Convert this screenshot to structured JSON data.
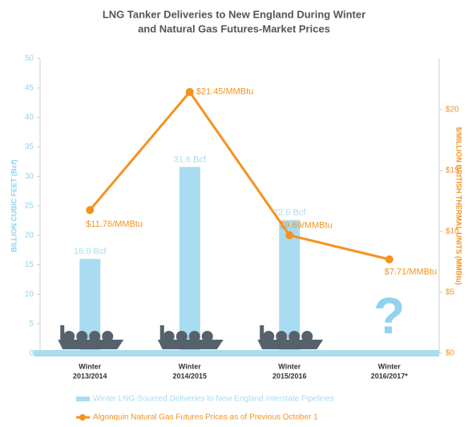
{
  "chart_data": {
    "type": "bar-line",
    "title": [
      "LNG Tanker Deliveries to New England During Winter",
      "and Natural Gas Futures-Market Prices"
    ],
    "categories": [
      [
        "Winter",
        "2013/2014"
      ],
      [
        "Winter",
        "2014/2015"
      ],
      [
        "Winter",
        "2015/2016"
      ],
      [
        "Winter",
        "2016/2017*"
      ]
    ],
    "series": [
      {
        "name": "Winter LNG-Sourced Deliveries to New England Interstate Pipelines",
        "type": "bar",
        "color": "#a9dcf0",
        "values": [
          16.0,
          31.6,
          22.6,
          null
        ],
        "value_labels": [
          "16.0 Bcf",
          "31.6 Bcf",
          "22.6 Bcf",
          null
        ]
      },
      {
        "name": "Algonquin Natural Gas Futures Prices as of Previous October 1",
        "type": "line",
        "axis": "y2",
        "color": "#f5921e",
        "values": [
          11.76,
          21.45,
          9.69,
          7.71
        ],
        "value_labels": [
          "$11.76/MMBtu",
          "$21.45/MMBtu",
          "$9.69/MMBtu",
          "$7.71/MMBtu"
        ]
      }
    ],
    "ylabel": "BILLION CUBIC FEET (Bcf)",
    "y2label": "$/MILLION BRITISH THERMAL UNITS (MMBtu)",
    "ylim": [
      0,
      50
    ],
    "yticks": [
      0,
      5,
      10,
      15,
      20,
      25,
      30,
      35,
      40,
      45,
      50
    ],
    "y2lim": [
      0,
      24.2
    ],
    "y2ticks": [
      {
        "value": 0,
        "label": "$0"
      },
      {
        "value": 5,
        "label": "$5"
      },
      {
        "value": 10,
        "label": "$10"
      },
      {
        "value": 15,
        "label": "$15"
      },
      {
        "value": 20,
        "label": "$20"
      }
    ],
    "annotations": [
      "?"
    ],
    "legend": "bottom"
  }
}
